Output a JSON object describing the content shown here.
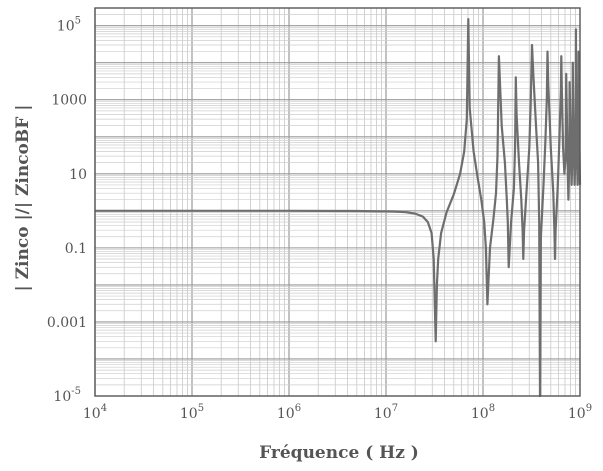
{
  "chart_data": {
    "type": "line",
    "title": "",
    "xlabel": "Fréquence ( Hz )",
    "ylabel": "| Zinco |/| ZincoBF |",
    "xscale": "log",
    "yscale": "log",
    "xlim": [
      10000,
      1000000000
    ],
    "ylim": [
      1e-05,
      300000
    ],
    "grid": true,
    "legend": "none",
    "x_tick_labels": [
      {
        "value": 10000,
        "base": "10",
        "exp": "4"
      },
      {
        "value": 100000,
        "base": "10",
        "exp": "5"
      },
      {
        "value": 1000000,
        "base": "10",
        "exp": "6"
      },
      {
        "value": 10000000,
        "base": "10",
        "exp": "7"
      },
      {
        "value": 100000000,
        "base": "10",
        "exp": "8"
      },
      {
        "value": 1000000000,
        "base": "10",
        "exp": "9"
      }
    ],
    "y_tick_labels": [
      {
        "value": 1e-05,
        "base": "10",
        "exp": "-5"
      },
      {
        "value": 0.001,
        "base": "0.001",
        "exp": ""
      },
      {
        "value": 0.1,
        "base": "0.1",
        "exp": ""
      },
      {
        "value": 10,
        "base": "10",
        "exp": ""
      },
      {
        "value": 1000,
        "base": "1000",
        "exp": ""
      },
      {
        "value": 100000,
        "base": "10",
        "exp": "5"
      }
    ],
    "line_color": "#6e6e6e",
    "series": [
      {
        "x": [
          10000,
          1000000,
          5000000,
          12000000,
          16000000,
          20000000,
          24000000,
          27000000,
          29500000,
          31000000,
          32500000,
          33500000,
          34500000,
          37000000,
          42000000,
          50000000,
          58000000,
          64000000,
          68000000,
          70500000,
          73000000,
          80000000,
          88000000,
          96000000,
          103000000,
          107000000,
          111000000,
          118000000,
          128000000,
          136000000,
          141000000,
          146000000,
          156000000,
          168000000,
          176000000,
          180000000,
          184000000,
          195000000,
          208000000,
          214000000,
          218000000,
          222000000,
          235000000,
          248000000,
          256000000,
          260000000,
          265000000,
          280000000,
          300000000,
          310000000,
          320000000,
          330000000,
          352000000,
          370000000,
          380000000,
          387000000,
          395000000,
          420000000,
          440000000,
          455000000,
          462000000,
          470000000,
          500000000,
          530000000,
          545000000,
          552000000,
          560000000,
          590000000,
          615000000,
          635000000,
          642000000,
          650000000,
          670000000,
          690000000,
          712000000,
          720000000,
          728000000,
          745000000,
          760000000,
          775000000,
          782000000,
          790000000,
          805000000,
          820000000,
          835000000,
          842000000,
          850000000,
          865000000,
          880000000,
          900000000,
          908000000,
          916000000,
          930000000,
          945000000,
          960000000,
          966000000,
          972000000,
          986000000,
          1000000000
        ],
        "y": [
          1,
          1,
          0.99,
          0.96,
          0.92,
          0.84,
          0.7,
          0.5,
          0.25,
          0.05,
          0.0003,
          0.01,
          0.05,
          0.25,
          0.9,
          2.8,
          10,
          40,
          300,
          150000,
          600,
          40,
          8,
          2,
          0.5,
          0.1,
          0.003,
          0.1,
          0.6,
          3,
          30,
          15000,
          200,
          20,
          2,
          0.5,
          0.03,
          0.5,
          4,
          60,
          4000,
          400,
          20,
          2,
          0.3,
          0.05,
          0.3,
          3,
          50,
          800,
          30000,
          5000,
          200,
          20,
          0.5,
          1e-05,
          0.2,
          5,
          80,
          1000,
          20000,
          3000,
          50,
          3,
          0.3,
          0.05,
          0.3,
          5,
          100,
          2000,
          15000,
          1500,
          50,
          10,
          30,
          5000,
          1000,
          20,
          2,
          20,
          3000,
          600,
          50,
          5,
          30,
          10000,
          800,
          60,
          5,
          40,
          80000,
          1000,
          50,
          5,
          30,
          20000,
          1000,
          50,
          5
        ]
      }
    ]
  }
}
